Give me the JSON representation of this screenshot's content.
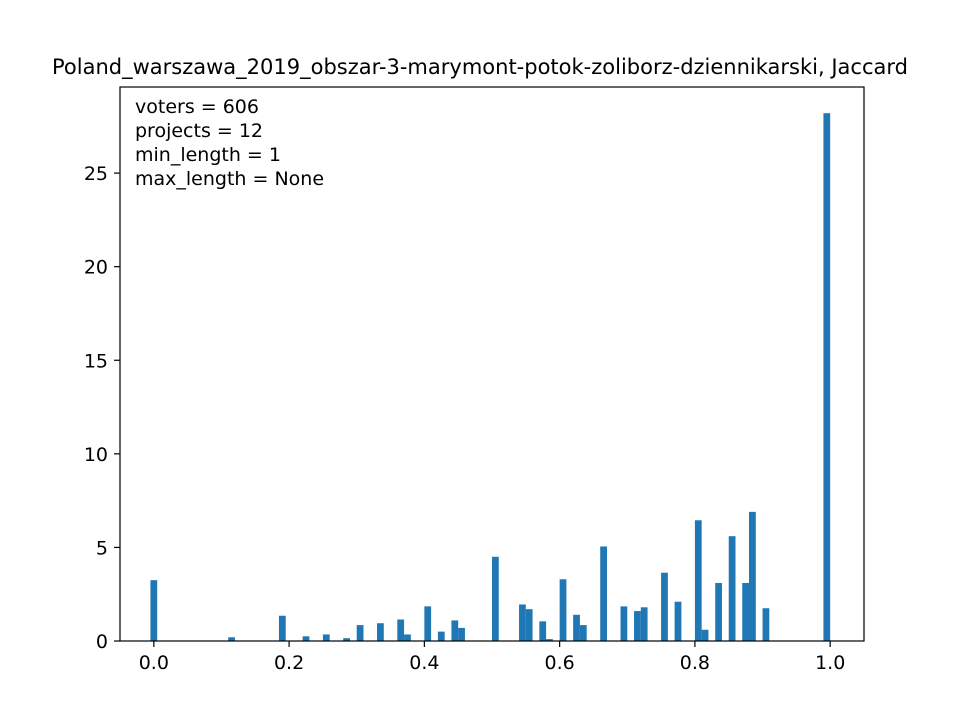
{
  "chart_data": {
    "type": "bar",
    "title": "Poland_warszawa_2019_obszar-3-marymont-potok-zoliborz-dziennikarski, Jaccard",
    "xlabel": "",
    "ylabel": "",
    "xlim": [
      -0.05,
      1.05
    ],
    "ylim": [
      0,
      29.6
    ],
    "bar_width": 0.01,
    "color": "#1f77b4",
    "xticks": [
      0.0,
      0.2,
      0.4,
      0.6,
      0.8,
      1.0
    ],
    "xtick_labels": [
      "0.0",
      "0.2",
      "0.4",
      "0.6",
      "0.8",
      "1.0"
    ],
    "yticks": [
      0,
      5,
      10,
      15,
      20,
      25
    ],
    "ytick_labels": [
      "0",
      "5",
      "10",
      "15",
      "20",
      "25"
    ],
    "annotations": [
      "voters = 606",
      "projects = 12",
      "min_length = 1",
      "max_length = None"
    ],
    "x": [
      0.0,
      0.115,
      0.19,
      0.225,
      0.255,
      0.285,
      0.305,
      0.335,
      0.365,
      0.375,
      0.405,
      0.425,
      0.445,
      0.455,
      0.505,
      0.545,
      0.555,
      0.575,
      0.585,
      0.605,
      0.625,
      0.635,
      0.665,
      0.695,
      0.715,
      0.725,
      0.755,
      0.775,
      0.805,
      0.815,
      0.835,
      0.855,
      0.875,
      0.885,
      0.905,
      0.995
    ],
    "values": [
      3.25,
      0.2,
      1.35,
      0.25,
      0.35,
      0.15,
      0.85,
      0.95,
      1.15,
      0.35,
      1.85,
      0.5,
      1.1,
      0.7,
      4.5,
      1.95,
      1.7,
      1.05,
      0.1,
      3.3,
      1.4,
      0.85,
      5.05,
      1.85,
      1.6,
      1.8,
      3.65,
      2.1,
      6.45,
      0.6,
      3.1,
      5.6,
      3.1,
      6.9,
      1.75,
      28.2
    ]
  }
}
